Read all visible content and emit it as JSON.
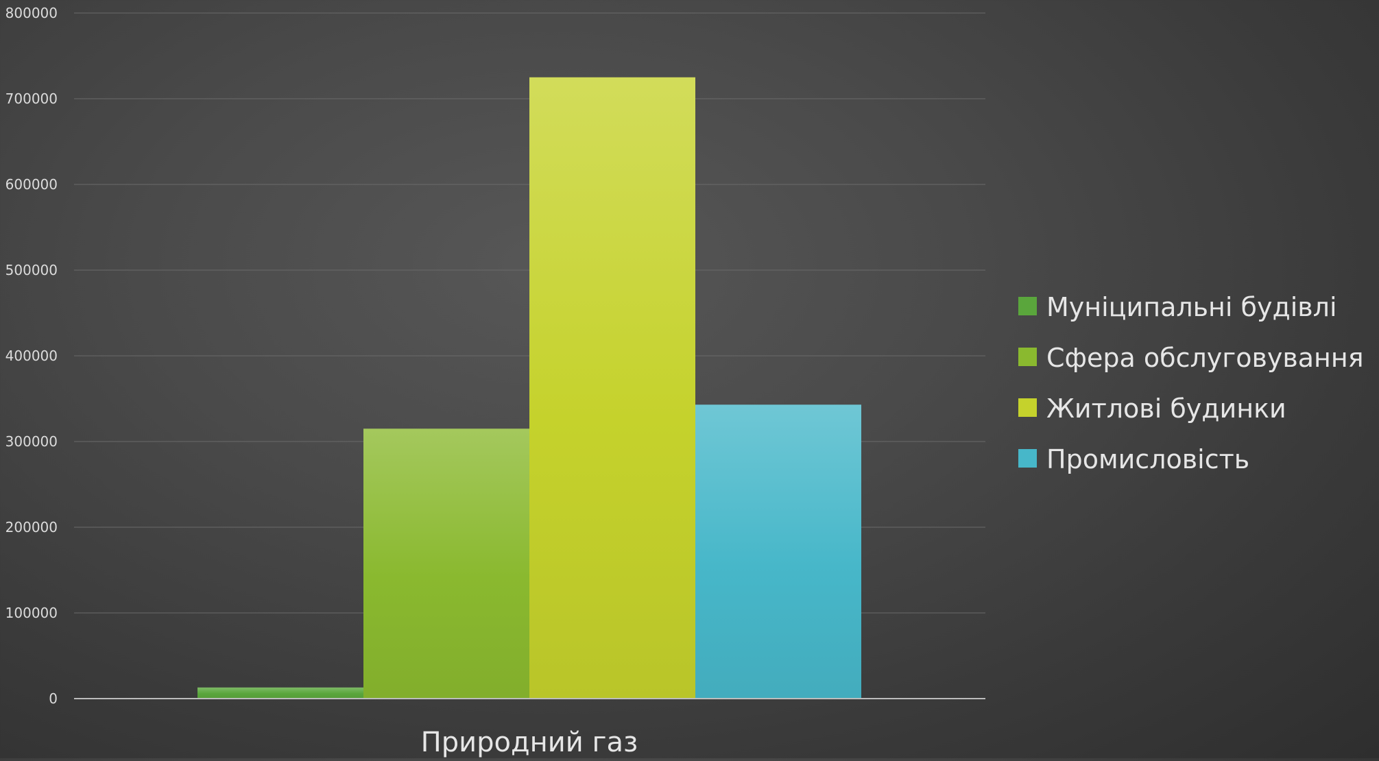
{
  "chart_data": {
    "type": "bar",
    "categories": [
      "Природний газ"
    ],
    "series": [
      {
        "name": "Муніципальні будівлі",
        "values": [
          13000
        ],
        "color": "#5aa63c"
      },
      {
        "name": "Сфера обслуговування",
        "values": [
          315000
        ],
        "color": "#8ab92f"
      },
      {
        "name": "Житлові будинки",
        "values": [
          725000
        ],
        "color": "#c5d22c"
      },
      {
        "name": "Промисловість",
        "values": [
          343000
        ],
        "color": "#47b7c9"
      }
    ],
    "title": "",
    "xlabel": "",
    "ylabel": "",
    "ylim": [
      0,
      800000
    ],
    "yticks": [
      "0",
      "100000",
      "200000",
      "300000",
      "400000",
      "500000",
      "600000",
      "700000",
      "800000"
    ],
    "grid": true,
    "legend_position": "right"
  }
}
